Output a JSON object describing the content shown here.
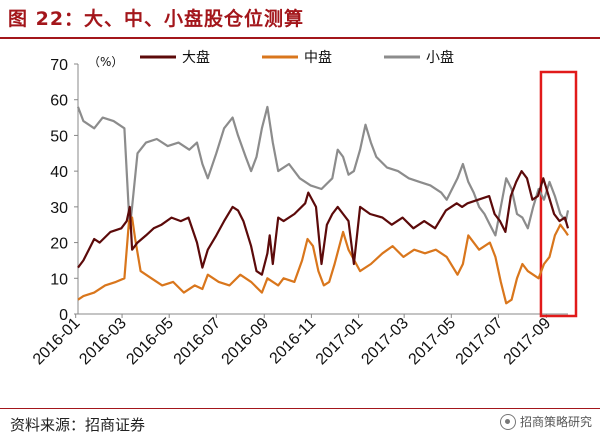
{
  "title": "图 22：大、中、小盘股仓位测算",
  "source": "资料来源：招商证券",
  "watermark": "招商策略研究",
  "chart_data": {
    "type": "line",
    "unit_label": "（%）",
    "ylim": [
      0,
      70
    ],
    "yticks": [
      0,
      10,
      20,
      30,
      40,
      50,
      60,
      70
    ],
    "xlim": [
      "2016-01-04",
      "2017-09-29"
    ],
    "xticks": [
      "2016-01",
      "2016-03",
      "2016-05",
      "2016-07",
      "2016-09",
      "2016-11",
      "2017-01",
      "2017-03",
      "2017-05",
      "2017-07",
      "2017-09"
    ],
    "highlight": {
      "x_start": "2017-08-25",
      "x_end": "2017-09-29",
      "color": "#e11a1a"
    },
    "legend_position": "top",
    "series": [
      {
        "name": "大盘",
        "color": "#5c0a0a",
        "points": [
          [
            "2016-01-04",
            13
          ],
          [
            "2016-01-11",
            15
          ],
          [
            "2016-01-18",
            18
          ],
          [
            "2016-01-25",
            21
          ],
          [
            "2016-02-01",
            20
          ],
          [
            "2016-02-15",
            23
          ],
          [
            "2016-02-29",
            24
          ],
          [
            "2016-03-07",
            26
          ],
          [
            "2016-03-11",
            30
          ],
          [
            "2016-03-14",
            18
          ],
          [
            "2016-03-21",
            20
          ],
          [
            "2016-04-01",
            22
          ],
          [
            "2016-04-11",
            24
          ],
          [
            "2016-04-21",
            25
          ],
          [
            "2016-05-04",
            27
          ],
          [
            "2016-05-16",
            26
          ],
          [
            "2016-05-26",
            27
          ],
          [
            "2016-06-06",
            20
          ],
          [
            "2016-06-13",
            13
          ],
          [
            "2016-06-20",
            18
          ],
          [
            "2016-07-01",
            22
          ],
          [
            "2016-07-11",
            26
          ],
          [
            "2016-07-22",
            30
          ],
          [
            "2016-07-29",
            29
          ],
          [
            "2016-08-05",
            26
          ],
          [
            "2016-08-15",
            19
          ],
          [
            "2016-08-22",
            12
          ],
          [
            "2016-08-29",
            11
          ],
          [
            "2016-09-05",
            17
          ],
          [
            "2016-09-08",
            22
          ],
          [
            "2016-09-12",
            14
          ],
          [
            "2016-09-19",
            27
          ],
          [
            "2016-09-26",
            26
          ],
          [
            "2016-10-10",
            28
          ],
          [
            "2016-10-24",
            31
          ],
          [
            "2016-10-28",
            34
          ],
          [
            "2016-11-07",
            30
          ],
          [
            "2016-11-14",
            14
          ],
          [
            "2016-11-21",
            25
          ],
          [
            "2016-11-28",
            28
          ],
          [
            "2016-12-05",
            30
          ],
          [
            "2016-12-12",
            28
          ],
          [
            "2016-12-19",
            26
          ],
          [
            "2016-12-26",
            14
          ],
          [
            "2017-01-03",
            30
          ],
          [
            "2017-01-16",
            28
          ],
          [
            "2017-02-01",
            27
          ],
          [
            "2017-02-13",
            25
          ],
          [
            "2017-02-27",
            27
          ],
          [
            "2017-03-13",
            24
          ],
          [
            "2017-03-27",
            26
          ],
          [
            "2017-04-10",
            24
          ],
          [
            "2017-04-24",
            29
          ],
          [
            "2017-05-08",
            31
          ],
          [
            "2017-05-15",
            30
          ],
          [
            "2017-05-22",
            31
          ],
          [
            "2017-06-05",
            32
          ],
          [
            "2017-06-19",
            33
          ],
          [
            "2017-06-26",
            28
          ],
          [
            "2017-07-03",
            26
          ],
          [
            "2017-07-10",
            23
          ],
          [
            "2017-07-17",
            33
          ],
          [
            "2017-07-24",
            37
          ],
          [
            "2017-07-31",
            40
          ],
          [
            "2017-08-07",
            38
          ],
          [
            "2017-08-14",
            32
          ],
          [
            "2017-08-21",
            33
          ],
          [
            "2017-08-28",
            38
          ],
          [
            "2017-09-04",
            33
          ],
          [
            "2017-09-11",
            28
          ],
          [
            "2017-09-18",
            26
          ],
          [
            "2017-09-25",
            27
          ],
          [
            "2017-09-29",
            24
          ]
        ]
      },
      {
        "name": "中盘",
        "color": "#d9761c",
        "points": [
          [
            "2016-01-04",
            4
          ],
          [
            "2016-01-11",
            5
          ],
          [
            "2016-01-25",
            6
          ],
          [
            "2016-02-08",
            8
          ],
          [
            "2016-02-22",
            9
          ],
          [
            "2016-03-04",
            10
          ],
          [
            "2016-03-10",
            26
          ],
          [
            "2016-03-14",
            27
          ],
          [
            "2016-03-18",
            21
          ],
          [
            "2016-03-25",
            12
          ],
          [
            "2016-04-08",
            10
          ],
          [
            "2016-04-22",
            8
          ],
          [
            "2016-05-06",
            9
          ],
          [
            "2016-05-20",
            6
          ],
          [
            "2016-06-03",
            8
          ],
          [
            "2016-06-13",
            7
          ],
          [
            "2016-06-20",
            11
          ],
          [
            "2016-07-04",
            9
          ],
          [
            "2016-07-18",
            8
          ],
          [
            "2016-08-01",
            11
          ],
          [
            "2016-08-15",
            9
          ],
          [
            "2016-08-29",
            6
          ],
          [
            "2016-09-05",
            10
          ],
          [
            "2016-09-19",
            8
          ],
          [
            "2016-09-26",
            10
          ],
          [
            "2016-10-10",
            9
          ],
          [
            "2016-10-20",
            15
          ],
          [
            "2016-10-27",
            21
          ],
          [
            "2016-11-03",
            19
          ],
          [
            "2016-11-10",
            12
          ],
          [
            "2016-11-17",
            8
          ],
          [
            "2016-11-24",
            9
          ],
          [
            "2016-12-01",
            14
          ],
          [
            "2016-12-12",
            23
          ],
          [
            "2016-12-19",
            18
          ],
          [
            "2017-01-03",
            12
          ],
          [
            "2017-01-17",
            14
          ],
          [
            "2017-02-01",
            17
          ],
          [
            "2017-02-14",
            19
          ],
          [
            "2017-02-28",
            16
          ],
          [
            "2017-03-14",
            18
          ],
          [
            "2017-03-28",
            17
          ],
          [
            "2017-04-11",
            18
          ],
          [
            "2017-04-25",
            16
          ],
          [
            "2017-05-09",
            11
          ],
          [
            "2017-05-16",
            14
          ],
          [
            "2017-05-23",
            22
          ],
          [
            "2017-06-06",
            18
          ],
          [
            "2017-06-20",
            20
          ],
          [
            "2017-06-27",
            16
          ],
          [
            "2017-07-04",
            9
          ],
          [
            "2017-07-11",
            3
          ],
          [
            "2017-07-18",
            4
          ],
          [
            "2017-07-25",
            10
          ],
          [
            "2017-08-01",
            14
          ],
          [
            "2017-08-08",
            12
          ],
          [
            "2017-08-15",
            11
          ],
          [
            "2017-08-22",
            10
          ],
          [
            "2017-08-29",
            14
          ],
          [
            "2017-09-05",
            16
          ],
          [
            "2017-09-12",
            22
          ],
          [
            "2017-09-19",
            25
          ],
          [
            "2017-09-26",
            23
          ],
          [
            "2017-09-29",
            22
          ]
        ]
      },
      {
        "name": "小盘",
        "color": "#8c8c8c",
        "points": [
          [
            "2016-01-04",
            58
          ],
          [
            "2016-01-11",
            54
          ],
          [
            "2016-01-25",
            52
          ],
          [
            "2016-02-05",
            55
          ],
          [
            "2016-02-19",
            54
          ],
          [
            "2016-03-04",
            52
          ],
          [
            "2016-03-09",
            32
          ],
          [
            "2016-03-11",
            24
          ],
          [
            "2016-03-14",
            30
          ],
          [
            "2016-03-21",
            45
          ],
          [
            "2016-04-01",
            48
          ],
          [
            "2016-04-15",
            49
          ],
          [
            "2016-04-29",
            47
          ],
          [
            "2016-05-13",
            48
          ],
          [
            "2016-05-27",
            46
          ],
          [
            "2016-06-06",
            48
          ],
          [
            "2016-06-13",
            42
          ],
          [
            "2016-06-20",
            38
          ],
          [
            "2016-07-01",
            45
          ],
          [
            "2016-07-11",
            52
          ],
          [
            "2016-07-22",
            55
          ],
          [
            "2016-07-29",
            50
          ],
          [
            "2016-08-08",
            44
          ],
          [
            "2016-08-15",
            40
          ],
          [
            "2016-08-22",
            44
          ],
          [
            "2016-08-29",
            52
          ],
          [
            "2016-09-05",
            58
          ],
          [
            "2016-09-12",
            48
          ],
          [
            "2016-09-19",
            40
          ],
          [
            "2016-10-03",
            42
          ],
          [
            "2016-10-17",
            38
          ],
          [
            "2016-10-31",
            36
          ],
          [
            "2016-11-14",
            35
          ],
          [
            "2016-11-28",
            38
          ],
          [
            "2016-12-05",
            46
          ],
          [
            "2016-12-12",
            44
          ],
          [
            "2016-12-19",
            39
          ],
          [
            "2016-12-26",
            40
          ],
          [
            "2017-01-03",
            46
          ],
          [
            "2017-01-10",
            53
          ],
          [
            "2017-01-17",
            48
          ],
          [
            "2017-01-24",
            44
          ],
          [
            "2017-02-07",
            41
          ],
          [
            "2017-02-21",
            40
          ],
          [
            "2017-03-07",
            38
          ],
          [
            "2017-03-21",
            37
          ],
          [
            "2017-04-04",
            36
          ],
          [
            "2017-04-18",
            34
          ],
          [
            "2017-04-25",
            32
          ],
          [
            "2017-05-02",
            35
          ],
          [
            "2017-05-09",
            38
          ],
          [
            "2017-05-16",
            42
          ],
          [
            "2017-05-23",
            37
          ],
          [
            "2017-05-30",
            34
          ],
          [
            "2017-06-06",
            30
          ],
          [
            "2017-06-13",
            28
          ],
          [
            "2017-06-20",
            25
          ],
          [
            "2017-06-27",
            22
          ],
          [
            "2017-07-04",
            30
          ],
          [
            "2017-07-11",
            38
          ],
          [
            "2017-07-18",
            35
          ],
          [
            "2017-07-25",
            28
          ],
          [
            "2017-08-01",
            27
          ],
          [
            "2017-08-08",
            24
          ],
          [
            "2017-08-15",
            30
          ],
          [
            "2017-08-22",
            35
          ],
          [
            "2017-08-29",
            32
          ],
          [
            "2017-09-05",
            37
          ],
          [
            "2017-09-12",
            33
          ],
          [
            "2017-09-19",
            28
          ],
          [
            "2017-09-26",
            26
          ],
          [
            "2017-09-29",
            29
          ]
        ]
      }
    ]
  }
}
